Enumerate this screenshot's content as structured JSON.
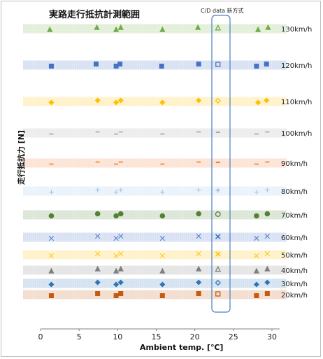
{
  "chart_data": {
    "type": "scatter",
    "title": "実路走行抵抗計測範囲",
    "annotation": "C/D data 新方式",
    "xlabel": "Ambient temp. [℃]",
    "ylabel": "走行抵抗力 [N]",
    "xlim": [
      0,
      31
    ],
    "xticks": [
      "0",
      "5",
      "10",
      "15",
      "20",
      "25",
      "30"
    ],
    "grid": false,
    "bands": [
      {
        "label": "130km/h",
        "color": "#70ad47",
        "marker": "triangle",
        "x": [
          1.2,
          7.3,
          9.8,
          10.4,
          15.8,
          20.4,
          28.2,
          29.5
        ],
        "cd_x": 23.0
      },
      {
        "label": "120km/h",
        "color": "#4472c4",
        "marker": "square",
        "x": [
          1.4,
          7.2,
          9.8,
          10.3,
          15.7,
          20.5,
          28.0,
          29.3
        ],
        "cd_x": 23.0
      },
      {
        "label": "110km/h",
        "color": "#ffc000",
        "marker": "diamond",
        "x": [
          1.4,
          7.4,
          9.8,
          10.4,
          15.8,
          20.5,
          28.2,
          29.3
        ],
        "cd_x": 23.0
      },
      {
        "label": "100km/h",
        "color": "#a5a5a5",
        "marker": "dash",
        "x": [
          1.4,
          7.4,
          9.8,
          10.4,
          15.8,
          20.5,
          28.0,
          29.4
        ],
        "cd_x": 23.0
      },
      {
        "label": "90km/h",
        "color": "#ed7d31",
        "marker": "dash",
        "x": [
          1.4,
          7.4,
          9.8,
          10.4,
          15.8,
          20.5,
          28.0,
          29.4
        ],
        "cd_x": 23.0
      },
      {
        "label": "80km/h",
        "color": "#9dc3e6",
        "marker": "plus",
        "x": [
          1.4,
          7.4,
          9.8,
          10.4,
          15.8,
          20.5,
          28.0,
          29.4
        ],
        "cd_x": 23.0
      },
      {
        "label": "70km/h",
        "color": "#548235",
        "marker": "circle",
        "x": [
          1.4,
          7.4,
          9.8,
          10.4,
          15.8,
          20.5,
          28.0,
          29.4
        ],
        "cd_x": 23.0
      },
      {
        "label": "60km/h",
        "color": "#4472c4",
        "marker": "x",
        "x": [
          1.4,
          7.4,
          9.8,
          10.4,
          15.8,
          20.5,
          28.0,
          29.4
        ],
        "cd_x": 23.0
      },
      {
        "label": "50km/h",
        "color": "#ffc000",
        "marker": "x",
        "x": [
          1.4,
          7.4,
          9.8,
          10.4,
          15.8,
          20.5,
          28.0,
          29.4
        ],
        "cd_x": 23.0
      },
      {
        "label": "40km/h",
        "color": "#7f7f7f",
        "marker": "triangle",
        "x": [
          1.4,
          7.4,
          9.8,
          10.4,
          15.8,
          20.5,
          28.0,
          29.4
        ],
        "cd_x": 23.0
      },
      {
        "label": "30km/h",
        "color": "#2e75b6",
        "marker": "diamond",
        "x": [
          1.4,
          7.4,
          9.8,
          10.4,
          15.8,
          20.5,
          28.0,
          29.4
        ],
        "cd_x": 23.0
      },
      {
        "label": "20km/h",
        "color": "#c55a11",
        "marker": "square",
        "x": [
          1.4,
          7.4,
          9.8,
          10.4,
          15.8,
          20.5,
          28.0,
          29.4
        ],
        "cd_x": 23.0
      }
    ]
  }
}
